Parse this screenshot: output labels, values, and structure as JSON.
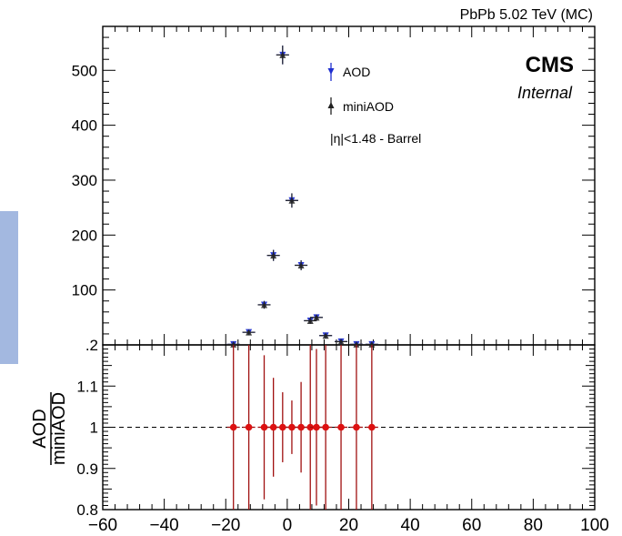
{
  "chart_data": [
    {
      "type": "scatter",
      "panel": "main",
      "title": "PbPb 5.02 TeV (MC)",
      "experiment": "CMS",
      "status": "Internal",
      "legend": [
        "AOD",
        "miniAOD"
      ],
      "region_label": "|η|<1.48 - Barrel",
      "xlim": [
        -60,
        100
      ],
      "ylim": [
        0,
        580
      ],
      "x_ticks": [
        "−60",
        "−40",
        "−20",
        "0",
        "20",
        "40",
        "60",
        "80",
        "100"
      ],
      "y_ticks": [
        "100",
        "200",
        "300",
        "400",
        "500"
      ],
      "series": [
        {
          "name": "AOD",
          "color": "#1f2fd0",
          "marker": "triangle-down",
          "x": [
            -17.5,
            -12.5,
            -7.5,
            -4.5,
            -1.5,
            1.5,
            4.5,
            7.5,
            9.5,
            12.5,
            17.5,
            22.5,
            27.5
          ],
          "y": [
            1,
            23,
            73,
            163,
            528,
            263,
            145,
            44,
            50,
            17,
            6,
            1,
            1
          ],
          "yerr": [
            1,
            4,
            7,
            10,
            17,
            13,
            9,
            5,
            5,
            3,
            2,
            1,
            1
          ]
        },
        {
          "name": "miniAOD",
          "color": "#222222",
          "marker": "triangle-up",
          "x": [
            -17.5,
            -12.5,
            -7.5,
            -4.5,
            -1.5,
            1.5,
            4.5,
            7.5,
            9.5,
            12.5,
            17.5,
            22.5,
            27.5
          ],
          "y": [
            1,
            23,
            73,
            163,
            528,
            263,
            145,
            44,
            50,
            17,
            6,
            1,
            1
          ],
          "yerr": [
            1,
            4,
            7,
            10,
            17,
            13,
            9,
            5,
            5,
            3,
            2,
            1,
            1
          ]
        }
      ]
    },
    {
      "type": "scatter",
      "panel": "ratio",
      "ylabel_num": "AOD",
      "ylabel_den": "miniAOD",
      "xlim": [
        -60,
        100
      ],
      "ylim": [
        0.8,
        1.2
      ],
      "reference_line": 1,
      "x_ticks": [
        "−60",
        "−40",
        "−20",
        "0",
        "20",
        "40",
        "60",
        "80",
        "100"
      ],
      "y_ticks": [
        "0.8",
        "0.9",
        "1",
        "1.1",
        ".2"
      ],
      "series": [
        {
          "name": "ratio",
          "color": "#dd1111",
          "x": [
            -17.5,
            -12.5,
            -7.5,
            -4.5,
            -1.5,
            1.5,
            4.5,
            7.5,
            9.5,
            12.5,
            17.5,
            22.5,
            27.5
          ],
          "y": [
            1,
            1,
            1,
            1,
            1,
            1,
            1,
            1,
            1,
            1,
            1,
            1,
            1
          ],
          "yerr": [
            1,
            1,
            0.175,
            0.12,
            0.085,
            0.065,
            0.11,
            0.2,
            0.19,
            0.3,
            0.45,
            1,
            1
          ]
        }
      ]
    }
  ]
}
